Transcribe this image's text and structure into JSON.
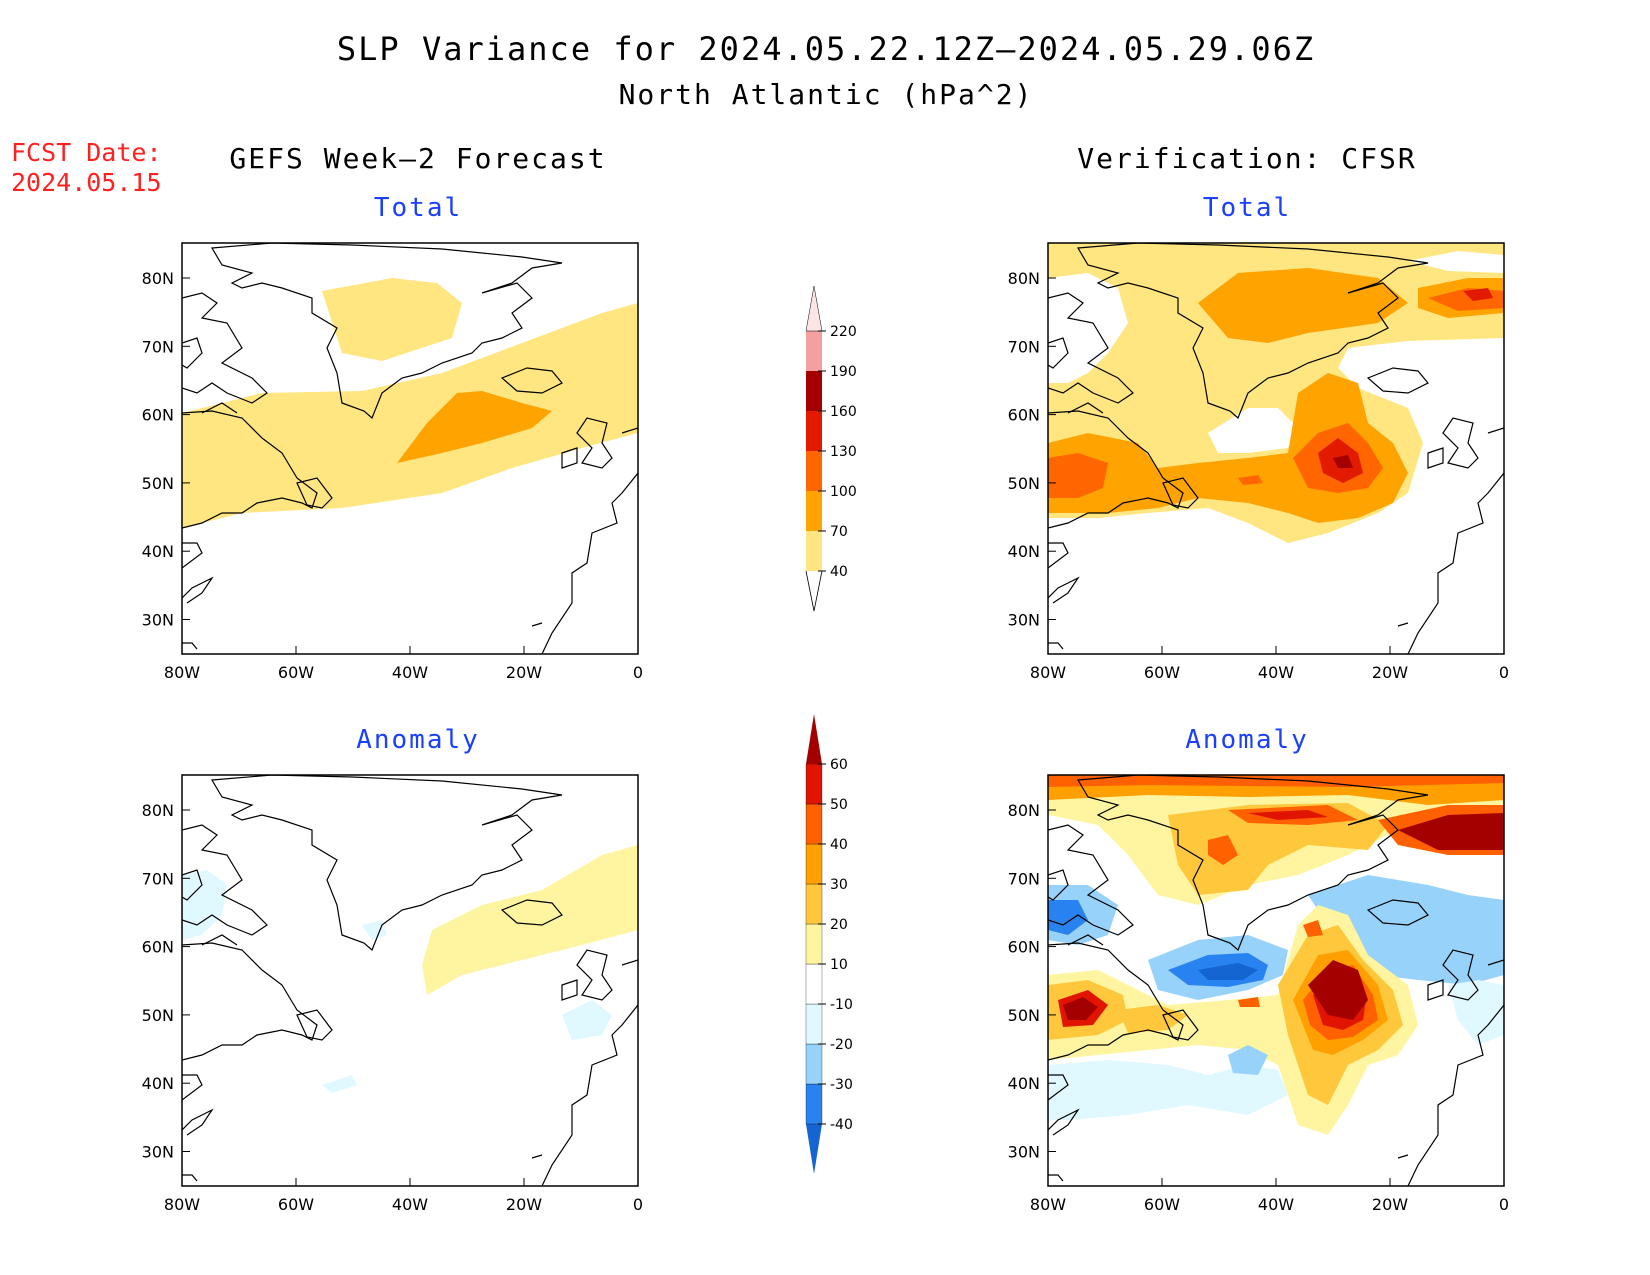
{
  "title": "SLP Variance for 2024.05.22.12Z–2024.05.29.06Z",
  "subtitle": "North Atlantic (hPa^2)",
  "fcst_date": {
    "label": "FCST Date:",
    "value": "2024.05.15"
  },
  "columns": {
    "left": "GEFS Week–2 Forecast",
    "right": "Verification: CFSR"
  },
  "panels": {
    "forecast_total": {
      "label": "Total"
    },
    "verif_total": {
      "label": "Total"
    },
    "forecast_anomaly": {
      "label": "Anomaly"
    },
    "verif_anomaly": {
      "label": "Anomaly"
    }
  },
  "axes": {
    "lon_labels": [
      "80W",
      "60W",
      "40W",
      "20W",
      "0"
    ],
    "lat_labels": [
      "80N",
      "70N",
      "60N",
      "50N",
      "40N",
      "30N"
    ]
  },
  "colorbars": {
    "total": {
      "levels": [
        "40",
        "70",
        "100",
        "130",
        "160",
        "190",
        "220"
      ],
      "colors": [
        "#ffe680",
        "#ffa300",
        "#ff6600",
        "#e11a00",
        "#a50000",
        "#f4a0a0",
        "#fde5e5"
      ]
    },
    "anomaly": {
      "levels": [
        "-40",
        "-30",
        "-20",
        "-10",
        "10",
        "20",
        "30",
        "40",
        "50",
        "60"
      ],
      "colors": [
        "#1464d2",
        "#2882f0",
        "#96d2fa",
        "#e0f8ff",
        "#ffffff",
        "#fff5a0",
        "#ffc83c",
        "#ffa000",
        "#ff6000",
        "#e11400",
        "#a50000"
      ]
    }
  },
  "colors": {
    "title_text": "#000000",
    "panel_label": "#1a3fff",
    "fcst_text": "#ff2020",
    "coastline": "#000000"
  }
}
